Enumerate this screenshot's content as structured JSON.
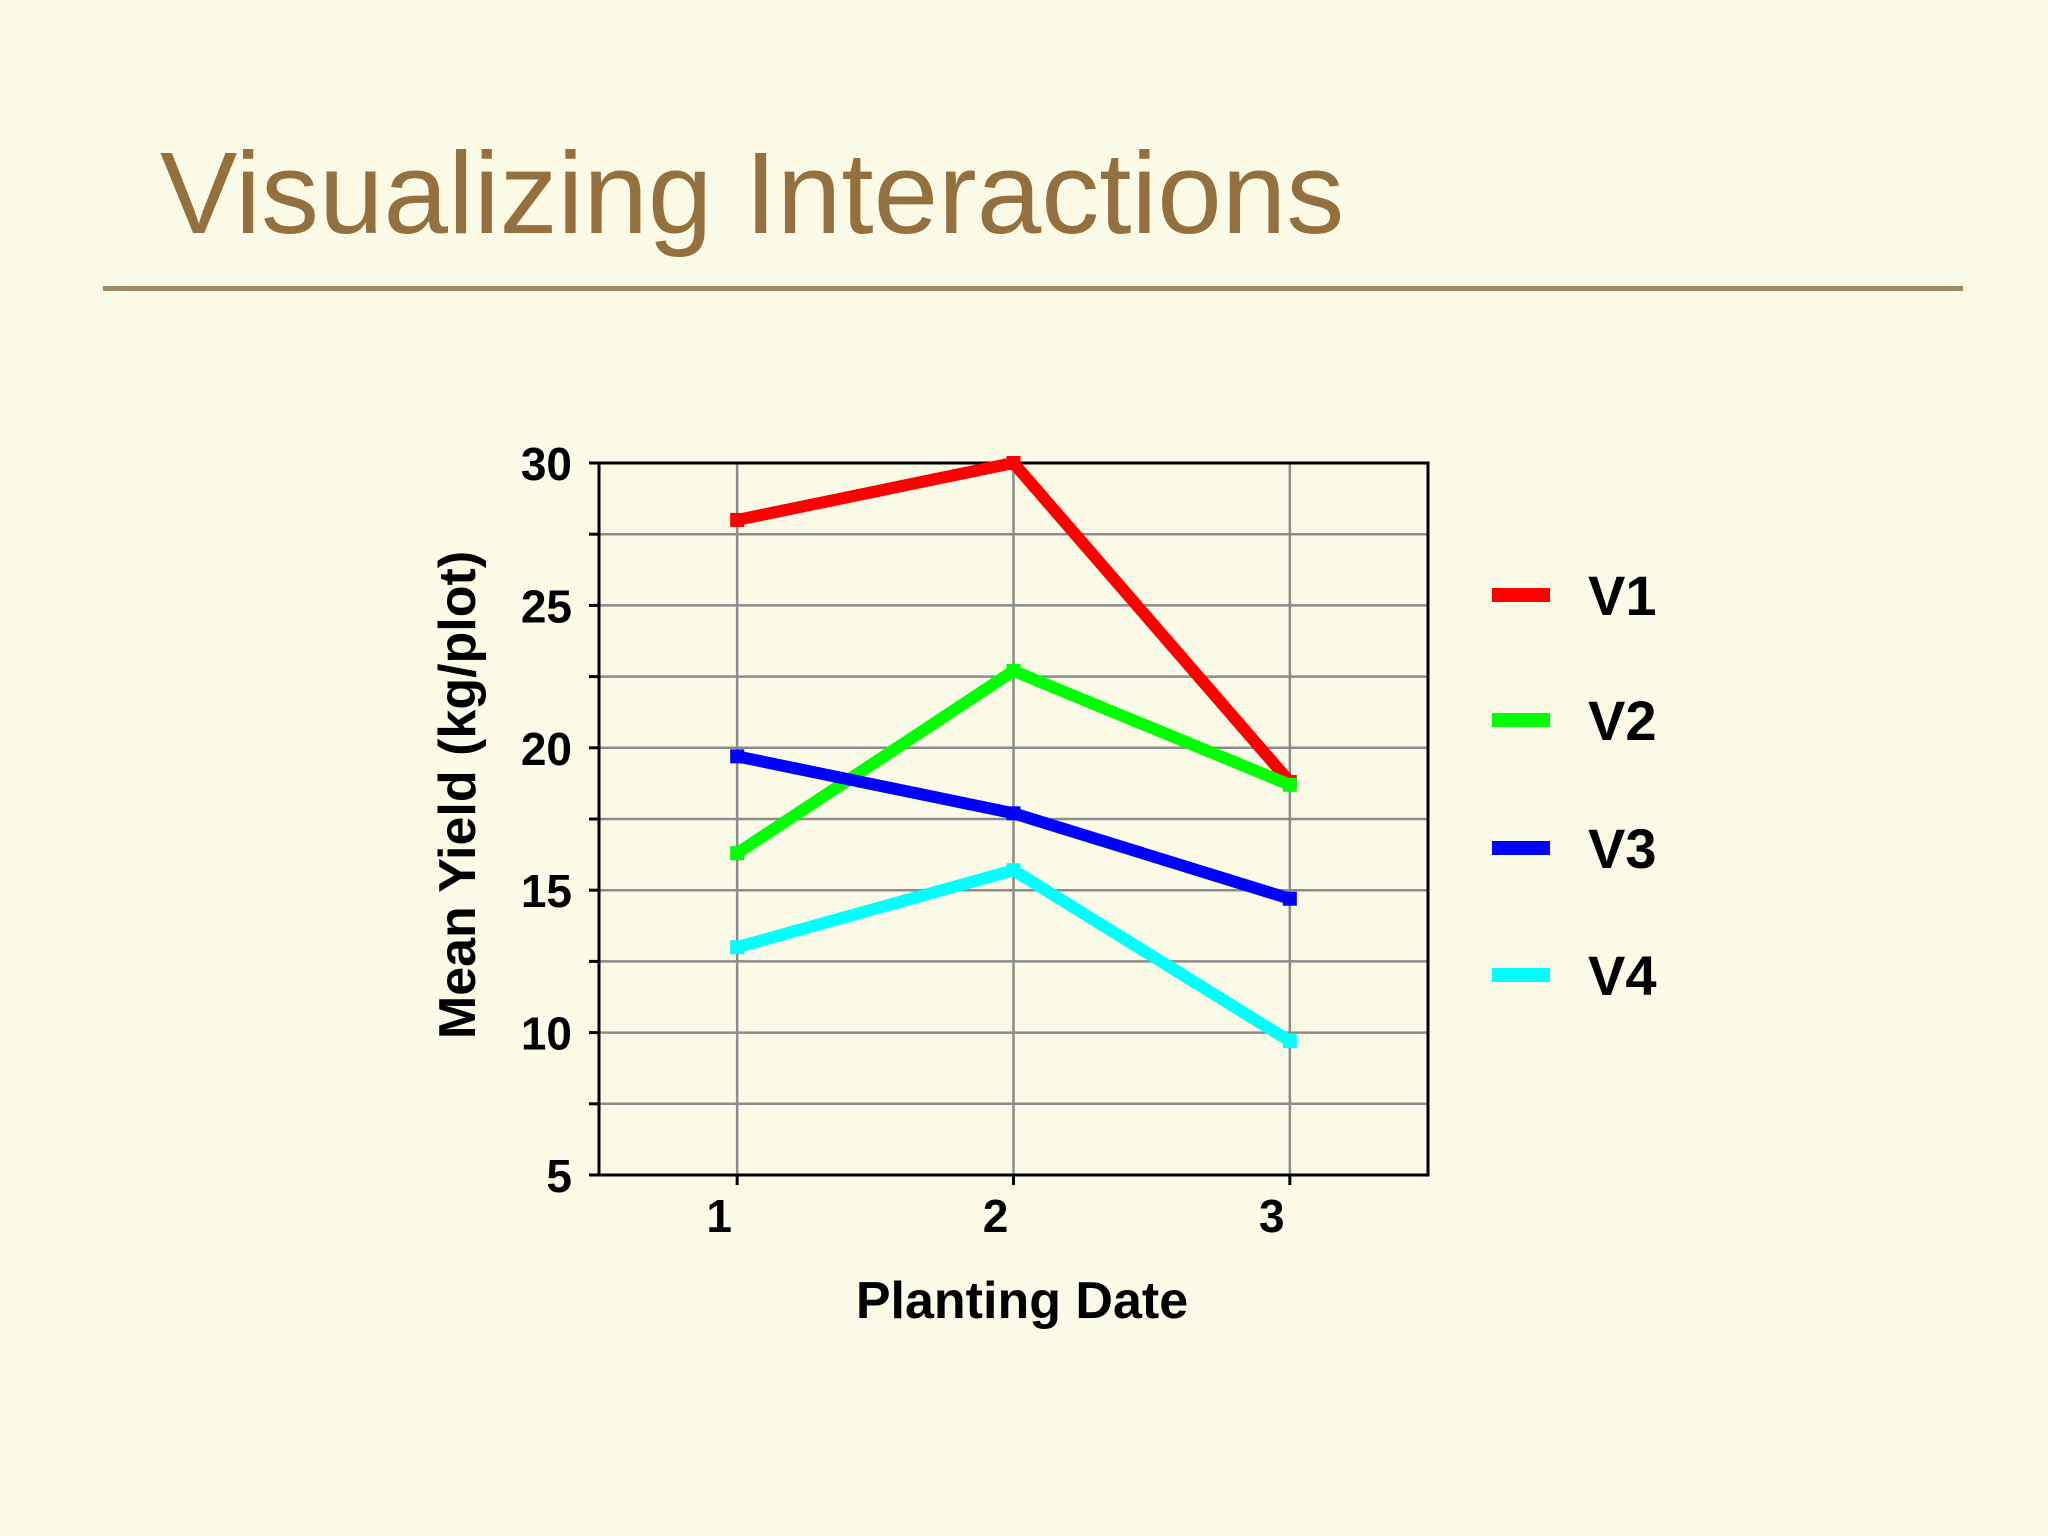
{
  "slide": {
    "title": "Visualizing Interactions"
  },
  "colors": {
    "background": "#fcfbe7",
    "title": "#94703f",
    "rule": "#a08a63",
    "grid": "#8c8c8c",
    "frame": "#000000"
  },
  "chart_data": {
    "type": "line",
    "title": "",
    "xlabel": "Planting Date",
    "ylabel": "Mean Yield (kg/plot)",
    "x": [
      1,
      2,
      3
    ],
    "x_ticks": [
      "1",
      "2",
      "3"
    ],
    "y_ticks": [
      "5",
      "10",
      "15",
      "20",
      "25",
      "30"
    ],
    "ylim": [
      5,
      30
    ],
    "xlim": [
      0.5,
      3.5
    ],
    "grid": true,
    "grid_minor_y_step": 2.5,
    "legend_position": "right",
    "series": [
      {
        "name": "V1",
        "color": "#ff0000",
        "values": [
          28,
          30,
          18.8
        ]
      },
      {
        "name": "V2",
        "color": "#00ff00",
        "values": [
          16.3,
          22.7,
          18.7
        ]
      },
      {
        "name": "V3",
        "color": "#0000ff",
        "values": [
          19.7,
          17.7,
          14.7
        ]
      },
      {
        "name": "V4",
        "color": "#00ffff",
        "values": [
          13,
          15.7,
          9.7
        ]
      }
    ]
  }
}
